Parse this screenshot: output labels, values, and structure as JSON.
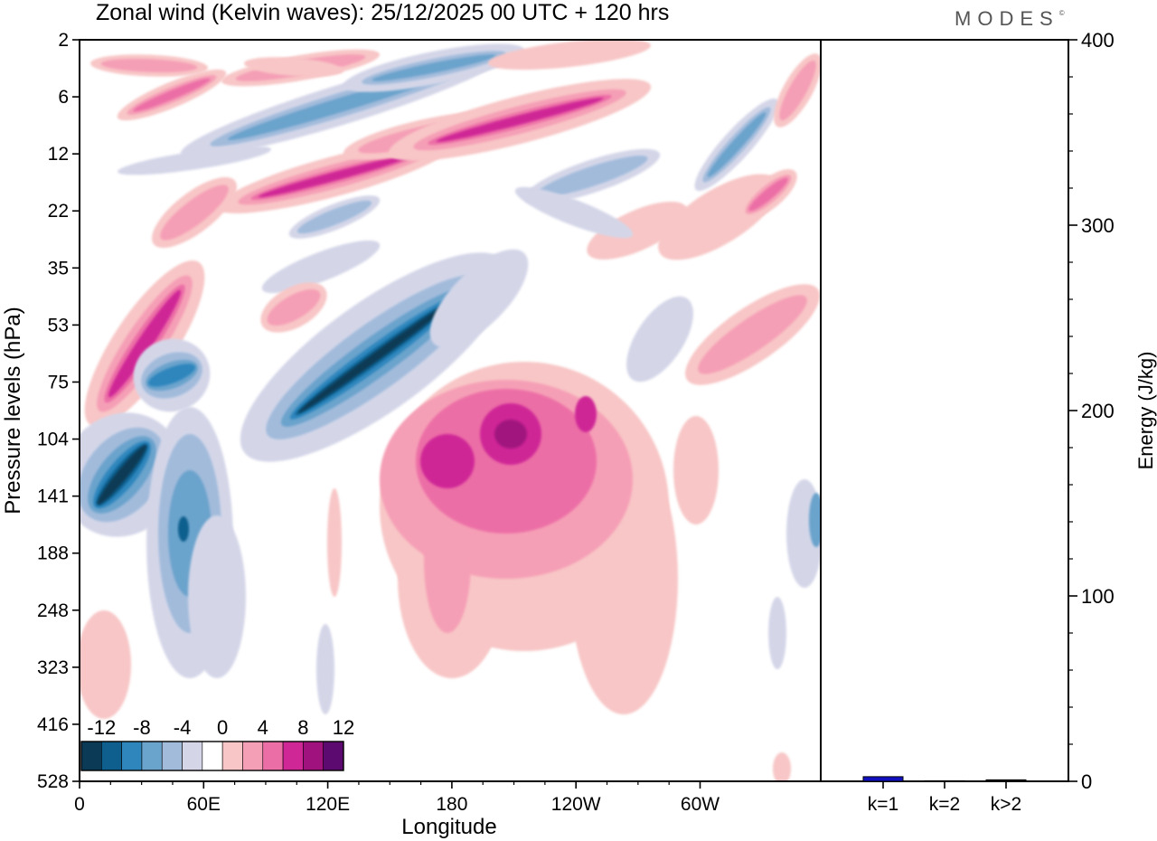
{
  "brand": {
    "name": "MODES",
    "mark": "©"
  },
  "chart_data": [
    {
      "type": "heatmap",
      "title": "Zonal wind (Kelvin waves):  25/12/2025  00 UTC  + 120 hrs",
      "xlabel": "Longitude",
      "ylabel": "Pressure levels (hPa)",
      "x_ticks": [
        "0",
        "60E",
        "120E",
        "180",
        "120W",
        "60W"
      ],
      "y_ticks": [
        "2",
        "6",
        "12",
        "22",
        "35",
        "53",
        "75",
        "104",
        "141",
        "188",
        "248",
        "323",
        "416",
        "528"
      ],
      "colorbar": {
        "labels": [
          "-12",
          "-8",
          "-4",
          "0",
          "4",
          "8",
          "12"
        ],
        "levels": [
          -14,
          -12,
          -10,
          -8,
          -6,
          -4,
          -2,
          2,
          4,
          6,
          8,
          10,
          12,
          14
        ],
        "colors": [
          "#0a3a55",
          "#0e5f8e",
          "#2f86bd",
          "#6aa3cc",
          "#a2bbdb",
          "#d4d6e8",
          "#ffffff",
          "#f8c6c6",
          "#f59fb6",
          "#ec6ea6",
          "#cf2896",
          "#a0127e",
          "#5c0a70"
        ]
      }
    },
    {
      "type": "bar",
      "categories": [
        "k=1",
        "k=2",
        "k>2"
      ],
      "values": [
        2.5,
        0.3,
        0.8
      ],
      "ylabel": "Energy (J/kg)",
      "ylim": [
        0,
        400
      ],
      "y_ticks": [
        "0",
        "100",
        "200",
        "300",
        "400"
      ],
      "bar_color": "#1010c0"
    }
  ]
}
